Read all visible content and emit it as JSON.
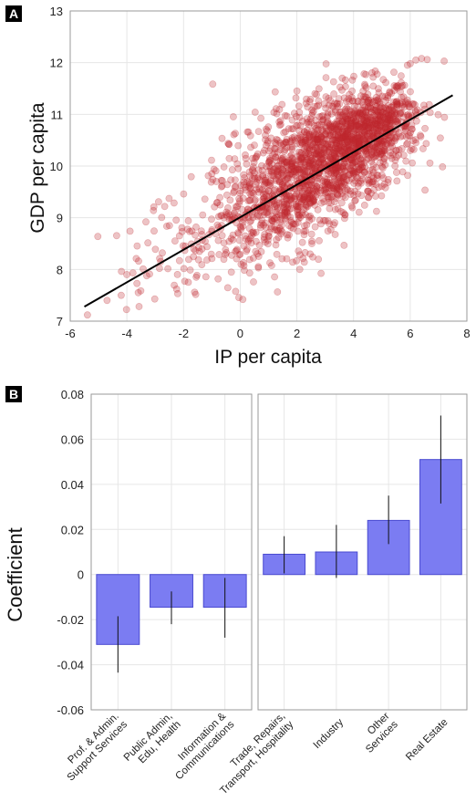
{
  "panels": {
    "a": {
      "label": "A"
    },
    "b": {
      "label": "B"
    }
  },
  "chart_data": [
    {
      "type": "scatter",
      "panel": "A",
      "xlabel": "IP per capita",
      "ylabel": "GDP per capita",
      "xlim": [
        -6,
        8
      ],
      "ylim": [
        7,
        13
      ],
      "xticks": [
        -6,
        -4,
        -2,
        0,
        2,
        4,
        6,
        8
      ],
      "yticks": [
        7,
        8,
        9,
        10,
        11,
        12,
        13
      ],
      "grid": true,
      "point_color": "#c0282f",
      "fit_line": {
        "x": [
          -5.5,
          7.5
        ],
        "y": [
          7.28,
          11.37
        ],
        "color": "#000000"
      },
      "cloud_clusters": [
        {
          "cx": 3.6,
          "cy": 10.3,
          "sx": 1.3,
          "sy": 0.55,
          "n": 900
        },
        {
          "cx": 2.0,
          "cy": 9.6,
          "sx": 1.5,
          "sy": 0.6,
          "n": 550
        },
        {
          "cx": 0.3,
          "cy": 9.0,
          "sx": 1.3,
          "sy": 0.55,
          "n": 220
        },
        {
          "cx": 4.8,
          "cy": 10.8,
          "sx": 0.8,
          "sy": 0.35,
          "n": 300
        },
        {
          "cx": -2.6,
          "cy": 8.4,
          "sx": 1.0,
          "sy": 0.5,
          "n": 45
        },
        {
          "cx": 2.2,
          "cy": 10.5,
          "sx": 1.6,
          "sy": 0.5,
          "n": 160
        }
      ],
      "points_extra": [
        {
          "x": 6.2,
          "y": 12.05
        },
        {
          "x": 6.4,
          "y": 12.08
        },
        {
          "x": 6.0,
          "y": 11.98
        },
        {
          "x": 6.6,
          "y": 12.06
        },
        {
          "x": 7.2,
          "y": 12.03
        },
        {
          "x": 5.9,
          "y": 11.95
        },
        {
          "x": -4.7,
          "y": 7.4
        },
        {
          "x": -4.2,
          "y": 7.5
        },
        {
          "x": -3.6,
          "y": 7.55
        },
        {
          "x": -4.0,
          "y": 7.9
        },
        {
          "x": 3.6,
          "y": 11.7
        },
        {
          "x": 2.0,
          "y": 11.45
        },
        {
          "x": 6.0,
          "y": 10.3
        },
        {
          "x": 6.2,
          "y": 10.45
        },
        {
          "x": 2.1,
          "y": 8.0
        }
      ]
    },
    {
      "type": "bar",
      "panel": "B",
      "ylabel": "Coefficient",
      "ylim": [
        -0.06,
        0.08
      ],
      "yticks": [
        -0.06,
        -0.04,
        -0.02,
        0,
        0.02,
        0.04,
        0.06,
        0.08
      ],
      "grid": true,
      "bar_color": "#7b7cf2",
      "bar_edge": "#4a4ad0",
      "groups": [
        {
          "categories": [
            [
              "Prof. & Admin.",
              "Support Services"
            ],
            [
              "Public Admin,",
              "Edu, Health"
            ],
            [
              "Information &",
              "Communications"
            ]
          ],
          "values": [
            -0.031,
            -0.0145,
            -0.0145
          ],
          "err_low": [
            -0.0435,
            -0.022,
            -0.028
          ],
          "err_high": [
            -0.0185,
            -0.0075,
            -0.0015
          ]
        },
        {
          "categories": [
            [
              "Trade, Repairs,",
              "Transport, Hospitality"
            ],
            [
              "Industry"
            ],
            [
              "Other",
              "Services"
            ],
            [
              "Real Estate"
            ]
          ],
          "values": [
            0.009,
            0.01,
            0.024,
            0.051
          ],
          "err_low": [
            0.0005,
            -0.0015,
            0.0135,
            0.0315
          ],
          "err_high": [
            0.017,
            0.022,
            0.035,
            0.0705
          ]
        }
      ]
    }
  ]
}
